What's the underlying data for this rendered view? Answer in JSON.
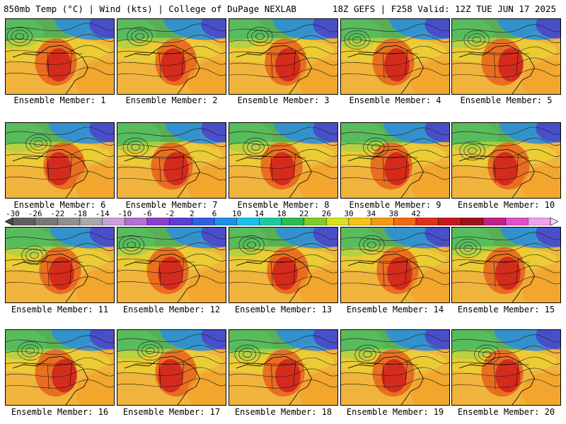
{
  "header": {
    "left_title": "850mb Temp (°C) | Wind (kts) | College of DuPage NEXLAB",
    "right_title": "18Z GEFS | F258 Valid: 12Z TUE JUN 17 2025"
  },
  "panels": [
    {
      "label": "Ensemble Member: 1"
    },
    {
      "label": "Ensemble Member: 2"
    },
    {
      "label": "Ensemble Member: 3"
    },
    {
      "label": "Ensemble Member: 4"
    },
    {
      "label": "Ensemble Member: 5"
    },
    {
      "label": "Ensemble Member: 6"
    },
    {
      "label": "Ensemble Member: 7"
    },
    {
      "label": "Ensemble Member: 8"
    },
    {
      "label": "Ensemble Member: 9"
    },
    {
      "label": "Ensemble Member: 10"
    },
    {
      "label": "Ensemble Member: 11"
    },
    {
      "label": "Ensemble Member: 12"
    },
    {
      "label": "Ensemble Member: 13"
    },
    {
      "label": "Ensemble Member: 14"
    },
    {
      "label": "Ensemble Member: 15"
    },
    {
      "label": "Ensemble Member: 16"
    },
    {
      "label": "Ensemble Member: 17"
    },
    {
      "label": "Ensemble Member: 18"
    },
    {
      "label": "Ensemble Member: 19"
    },
    {
      "label": "Ensemble Member: 20"
    }
  ],
  "colorbar": {
    "ticks": [
      "-30",
      "-26",
      "-22",
      "-18",
      "-14",
      "-10",
      "-6",
      "-2",
      "2",
      "6",
      "10",
      "14",
      "18",
      "22",
      "26",
      "30",
      "34",
      "38",
      "42"
    ],
    "colors": [
      "#5f5f5f",
      "#787878",
      "#8f8f8f",
      "#a8a8a8",
      "#c9a0d8",
      "#b26fd6",
      "#8a3fcf",
      "#5a3fd0",
      "#2f5fe0",
      "#1f8fe8",
      "#19c2e8",
      "#1ec9a0",
      "#2fb84f",
      "#7fcc2a",
      "#d8e021",
      "#f4c41a",
      "#f39a18",
      "#ee6a14",
      "#e0301a",
      "#c41a1a",
      "#9b1416",
      "#c0208a",
      "#e050c8",
      "#f0a0f0"
    ]
  }
}
